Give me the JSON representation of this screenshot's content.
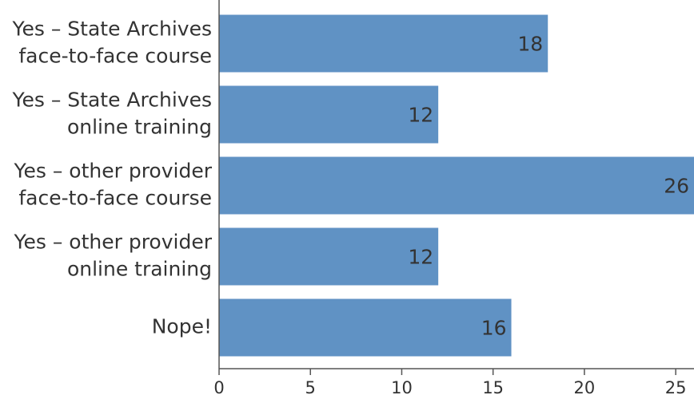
{
  "chart_data": {
    "type": "barh",
    "categories": [
      "Yes – State Archives\nface-to-face course",
      "Yes – State Archives\nonline training",
      "Yes – other provider\nface-to-face course",
      "Yes – other provider\nonline training",
      "Nope!"
    ],
    "values": [
      18,
      12,
      26,
      12,
      16
    ],
    "color": "#6092c4",
    "xlim": [
      0,
      26
    ],
    "xticks": [
      0,
      5,
      10,
      15,
      20,
      25
    ]
  }
}
